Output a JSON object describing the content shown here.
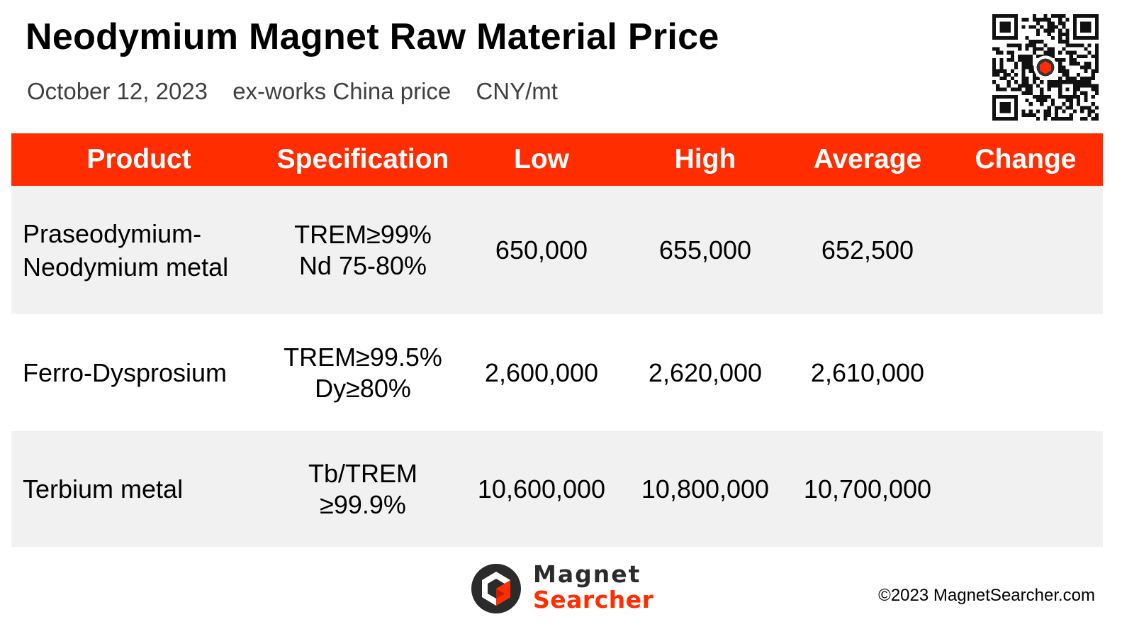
{
  "title": "Neodymium Magnet Raw Material Price",
  "subtitle": {
    "date": "October 12, 2023",
    "basis": "ex-works China price",
    "unit": "CNY/mt"
  },
  "table": {
    "headers": [
      "Product",
      "Specification",
      "Low",
      "High",
      "Average",
      "Change"
    ],
    "rows": [
      {
        "product": [
          "Praseodymium-",
          "Neodymium metal"
        ],
        "spec": [
          "TREM≥99%",
          "Nd 75-80%"
        ],
        "low": "650,000",
        "high": "655,000",
        "average": "652,500",
        "change": ""
      },
      {
        "product": [
          "Ferro-Dysprosium"
        ],
        "spec": [
          "TREM≥99.5%",
          "Dy≥80%"
        ],
        "low": "2,600,000",
        "high": "2,620,000",
        "average": "2,610,000",
        "change": ""
      },
      {
        "product": [
          "Terbium metal"
        ],
        "spec": [
          "Tb/TREM",
          "≥99.9%"
        ],
        "low": "10,600,000",
        "high": "10,800,000",
        "average": "10,700,000",
        "change": ""
      }
    ]
  },
  "brand": {
    "line1": "Magnet",
    "line2": "Searcher"
  },
  "copyright": "©2023 MagnetSearcher.com",
  "colors": {
    "header_bg": "#ff2d00",
    "row_shade": "#f1f1f1",
    "brand_accent": "#ff2d00"
  },
  "icons": [
    "qr-code-icon",
    "magnet-searcher-logo-icon"
  ]
}
